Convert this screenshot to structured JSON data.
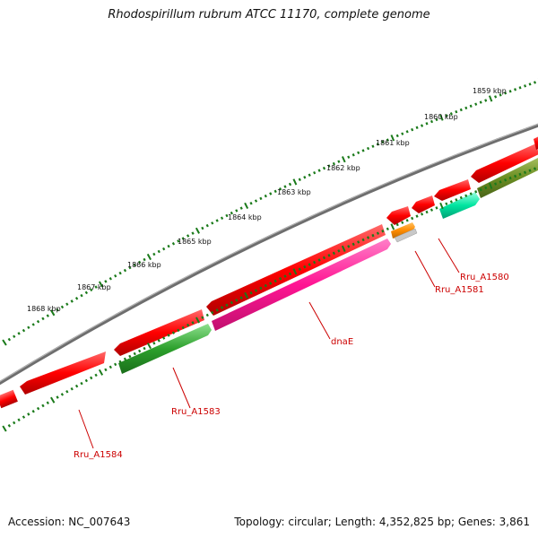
{
  "title": "Rhodospirillum rubrum ATCC 11170, complete genome",
  "accession": "Accession: NC_007643",
  "summary": "Topology: circular; Length: 4,352,825 bp; Genes: 3,861",
  "ruler_labels": [
    "1859 kbp",
    "1860 kbp",
    "1861 kbp",
    "1862 kbp",
    "1863 kbp",
    "1864 kbp",
    "1865 kbp",
    "1866 kbp",
    "1867 kbp",
    "1868 kbp"
  ],
  "gene_labels": [
    "Rru_A1580",
    "Rru_A1581",
    "dnaE",
    "Rru_A1583",
    "Rru_A1584"
  ],
  "colors": {
    "backbone": "#808080",
    "forward_gene": "#ff0000",
    "dnaE": "#ff1493",
    "Rru_A1583": "#2ca02c",
    "Rru_A1580": "#00e5a0",
    "Rru_A1581": "#ff8c00",
    "olive_feature": "#6b8e23",
    "small_gray_feature": "#c0c0c0",
    "ticks": "#1a7a1a",
    "label_text": "#cc0000"
  }
}
